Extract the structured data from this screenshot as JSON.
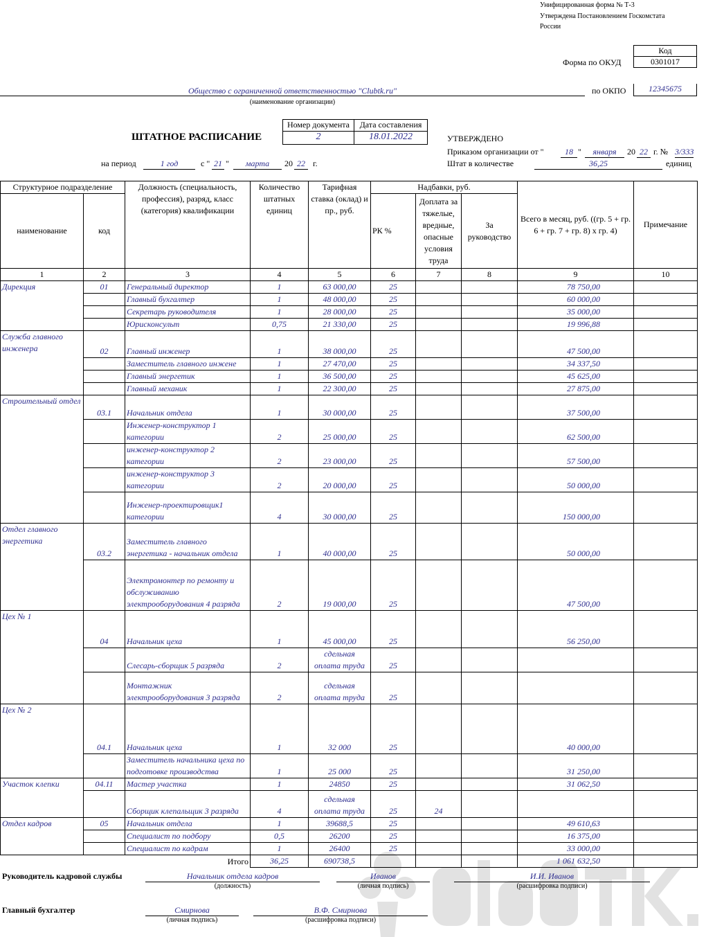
{
  "form_header": {
    "line1": "Унифицированная форма № Т-3",
    "line2": "Утверждена Постановлением Госкомстата",
    "line3": "России"
  },
  "codes": {
    "code_label": "Код",
    "okud_label": "Форма по ОКУД",
    "okud": "0301017",
    "okpo_label": "по ОКПО",
    "okpo": "12345675"
  },
  "organization": {
    "name": "Общество с ограниченной ответственностью \"Clubtk.ru\"",
    "caption": "(наименование организации)"
  },
  "document": {
    "title": "ШТАТНОЕ РАСПИСАНИЕ",
    "number_label": "Номер документа",
    "date_label": "Дата составления",
    "number": "2",
    "date": "18.01.2022"
  },
  "period": {
    "label": "на период",
    "value": "1 год",
    "from": "с \"",
    "day": "21",
    "q": "\"",
    "month": "марта",
    "year_prefix": "20",
    "year": "22",
    "g": "г."
  },
  "approved": {
    "title": "УТВЕРЖДЕНО",
    "order_label": "Приказом организации от \"",
    "day": "18",
    "q": "\"",
    "month": "января",
    "year_prefix": "20",
    "year": "22",
    "num_label": "г. №",
    "num": "3/333",
    "staff_label": "Штат в количестве",
    "staff": "36,25",
    "units": "единиц"
  },
  "table": {
    "headers": {
      "struct": "Структурное подразделение",
      "name": "наименование",
      "code": "код",
      "position": "Должность (специальность, профессия), разряд, класс (категория) квалификации",
      "count": "Количество штатных единиц",
      "rate": "Тарифная ставка (оклад) и пр., руб.",
      "allowances": "Надбавки, руб.",
      "rk": "РК %",
      "hazard": "Доплата за тяжелые, вредные, опасные условия труда",
      "mgmt": "За руководство",
      "total": "Всего в месяц, руб. ((гр. 5 + гр. 6 + гр. 7 + гр. 8) х гр. 4)",
      "note": "Примечание"
    },
    "col_numbers": [
      "1",
      "2",
      "3",
      "4",
      "5",
      "6",
      "7",
      "8",
      "9",
      "10"
    ],
    "groups": [
      {
        "dept": "Дирекция",
        "code": "01",
        "rows": [
          {
            "pos": "Генеральный директор",
            "n": "1",
            "rate": "63 000,00",
            "rk": "25",
            "h": "",
            "total": "78 750,00",
            "ht": 17
          },
          {
            "pos": "Главный бухгалтер",
            "n": "1",
            "rate": "48 000,00",
            "rk": "25",
            "h": "",
            "total": "60 000,00",
            "ht": 17
          },
          {
            "pos": "Секретарь руководителя",
            "n": "1",
            "rate": "28 000,00",
            "rk": "25",
            "h": "",
            "total": "35 000,00",
            "ht": 17
          },
          {
            "pos": "Юрисконсульт",
            "n": "0,75",
            "rate": "21 330,00",
            "rk": "25",
            "h": "",
            "total": "19 996,88",
            "ht": 17
          }
        ]
      },
      {
        "dept": "Служба главного инженера",
        "code": "02",
        "rows": [
          {
            "pos": "Главный инженер",
            "n": "1",
            "rate": "38 000,00",
            "rk": "25",
            "h": "",
            "total": "47 500,00",
            "ht": 39
          },
          {
            "pos": "Заместитель главного инжене",
            "n": "1",
            "rate": "27 470,00",
            "rk": "25",
            "h": "",
            "total": "34 337,50",
            "ht": 17
          },
          {
            "pos": "Главный энергетик",
            "n": "1",
            "rate": "36 500,00",
            "rk": "25",
            "h": "",
            "total": "45 625,00",
            "ht": 18
          },
          {
            "pos": "Главный механик",
            "n": "1",
            "rate": "22 300,00",
            "rk": "25",
            "h": "",
            "total": "27 875,00",
            "ht": 18
          }
        ]
      },
      {
        "dept": "Строительный отдел",
        "code": "03.1",
        "rows": [
          {
            "pos": "Начальник отдела",
            "n": "1",
            "rate": "30 000,00",
            "rk": "25",
            "h": "",
            "total": "37 500,00",
            "ht": 35
          },
          {
            "pos": "Инженер-конструктор 1 категории",
            "n": "2",
            "rate": "25 000,00",
            "rk": "25",
            "h": "",
            "total": "62 500,00",
            "ht": 34
          },
          {
            "pos": "инженер-конструктор 2 категории",
            "n": "2",
            "rate": "23 000,00",
            "rk": "25",
            "h": "",
            "total": "57 500,00",
            "ht": 34
          },
          {
            "pos": "инженер-конструктор 3 категории",
            "n": "2",
            "rate": "20 000,00",
            "rk": "25",
            "h": "",
            "total": "50 000,00",
            "ht": 34
          },
          {
            "pos": "Инженер-проектировщик1 категории",
            "n": "4",
            "rate": "30 000,00",
            "rk": "25",
            "h": "",
            "total": "150 000,00",
            "ht": 45
          }
        ]
      },
      {
        "dept": "Отдел главного энергетика",
        "code": "03.2",
        "rows": [
          {
            "pos": "Заместитель главного энергетика - начальник отдела",
            "n": "1",
            "rate": "40 000,00",
            "rk": "25",
            "h": "",
            "total": "50 000,00",
            "ht": 53
          },
          {
            "pos": "Электромонтер по ремонту и обслуживанию электрооборудования 4 разряда",
            "n": "2",
            "rate": "19 000,00",
            "rk": "25",
            "h": "",
            "total": "47 500,00",
            "ht": 73
          }
        ]
      },
      {
        "dept": "Цех № 1",
        "code": "04",
        "rows": [
          {
            "pos": "Начальник цеха",
            "n": "1",
            "rate": "45 000,00",
            "rk": "25",
            "h": "",
            "total": "56 250,00",
            "ht": 54
          },
          {
            "pos": "Слесарь-сборщик 5 разряда",
            "n": "2",
            "rate": "сдельная оплата труда",
            "rk": "25",
            "h": "",
            "total": "",
            "ht": 35
          },
          {
            "pos": "Монтажник электрооборудования 3 разряда",
            "n": "2",
            "rate": "сдельная оплата труда",
            "rk": "25",
            "h": "",
            "total": "",
            "ht": 46
          }
        ]
      },
      {
        "dept": "Цех № 2",
        "code": "04.1",
        "rows": [
          {
            "pos": "Начальник цеха",
            "n": "1",
            "rate": "32 000",
            "rk": "25",
            "h": "",
            "total": "40 000,00",
            "ht": 72
          },
          {
            "pos": "Заместитель начальника цеха по подготовке производства",
            "n": "1",
            "rate": "25 000",
            "rk": "25",
            "h": "",
            "total": "31 250,00",
            "ht": 33
          }
        ]
      },
      {
        "dept": "Участок клепки",
        "code": "04.11",
        "rows": [
          {
            "pos": "Мастер участка",
            "n": "1",
            "rate": "24850",
            "rk": "25",
            "h": "",
            "total": "31 062,50",
            "ht": 17
          },
          {
            "pos": "Сборщик клепальщик 3 разряда",
            "n": "4",
            "rate": "сдельная оплата труда",
            "rk": "25",
            "h": "24",
            "total": "",
            "ht": 39
          }
        ]
      },
      {
        "dept": "Отдел кадров",
        "code": "05",
        "rows": [
          {
            "pos": "Начальник отдела",
            "n": "1",
            "rate": "39688,5",
            "rk": "25",
            "h": "",
            "total": "49 610,63",
            "ht": 18
          },
          {
            "pos": "Специалист по подбору",
            "n": "0,5",
            "rate": "26200",
            "rk": "25",
            "h": "",
            "total": "16 375,00",
            "ht": 17
          },
          {
            "pos": "Специалист по кадрам",
            "n": "1",
            "rate": "26400",
            "rk": "25",
            "h": "",
            "total": "33 000,00",
            "ht": 18
          }
        ]
      }
    ],
    "total": {
      "label": "Итого",
      "count": "36,25",
      "rate": "690738,5",
      "sum": "1 061 632,50"
    }
  },
  "signatures": {
    "hr_label": "Руководитель кадровой службы",
    "hr_position": "Начальник отдела кадров",
    "hr_sign": "Иванов",
    "hr_name": "И.И. Иванов",
    "cap_position": "(должность)",
    "cap_sign": "(личная подпись)",
    "cap_name": "(расшифровка подписи)",
    "acc_label": "Главный бухгалтер",
    "acc_sign": "Смирнова",
    "acc_name": "В.Ф. Смирнова"
  },
  "watermark": "ClubTK.ru"
}
